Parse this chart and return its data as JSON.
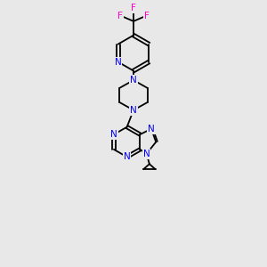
{
  "bg_color": "#e8e8e8",
  "bond_color": "#000000",
  "N_color": "#0000ff",
  "F_color": "#ff00cc",
  "bond_width": 1.3,
  "font_size_atom": 7.5,
  "fig_width": 3.0,
  "fig_height": 3.0,
  "dpi": 100,
  "xlim": [
    2.5,
    7.5
  ],
  "ylim": [
    0.5,
    14.5
  ]
}
